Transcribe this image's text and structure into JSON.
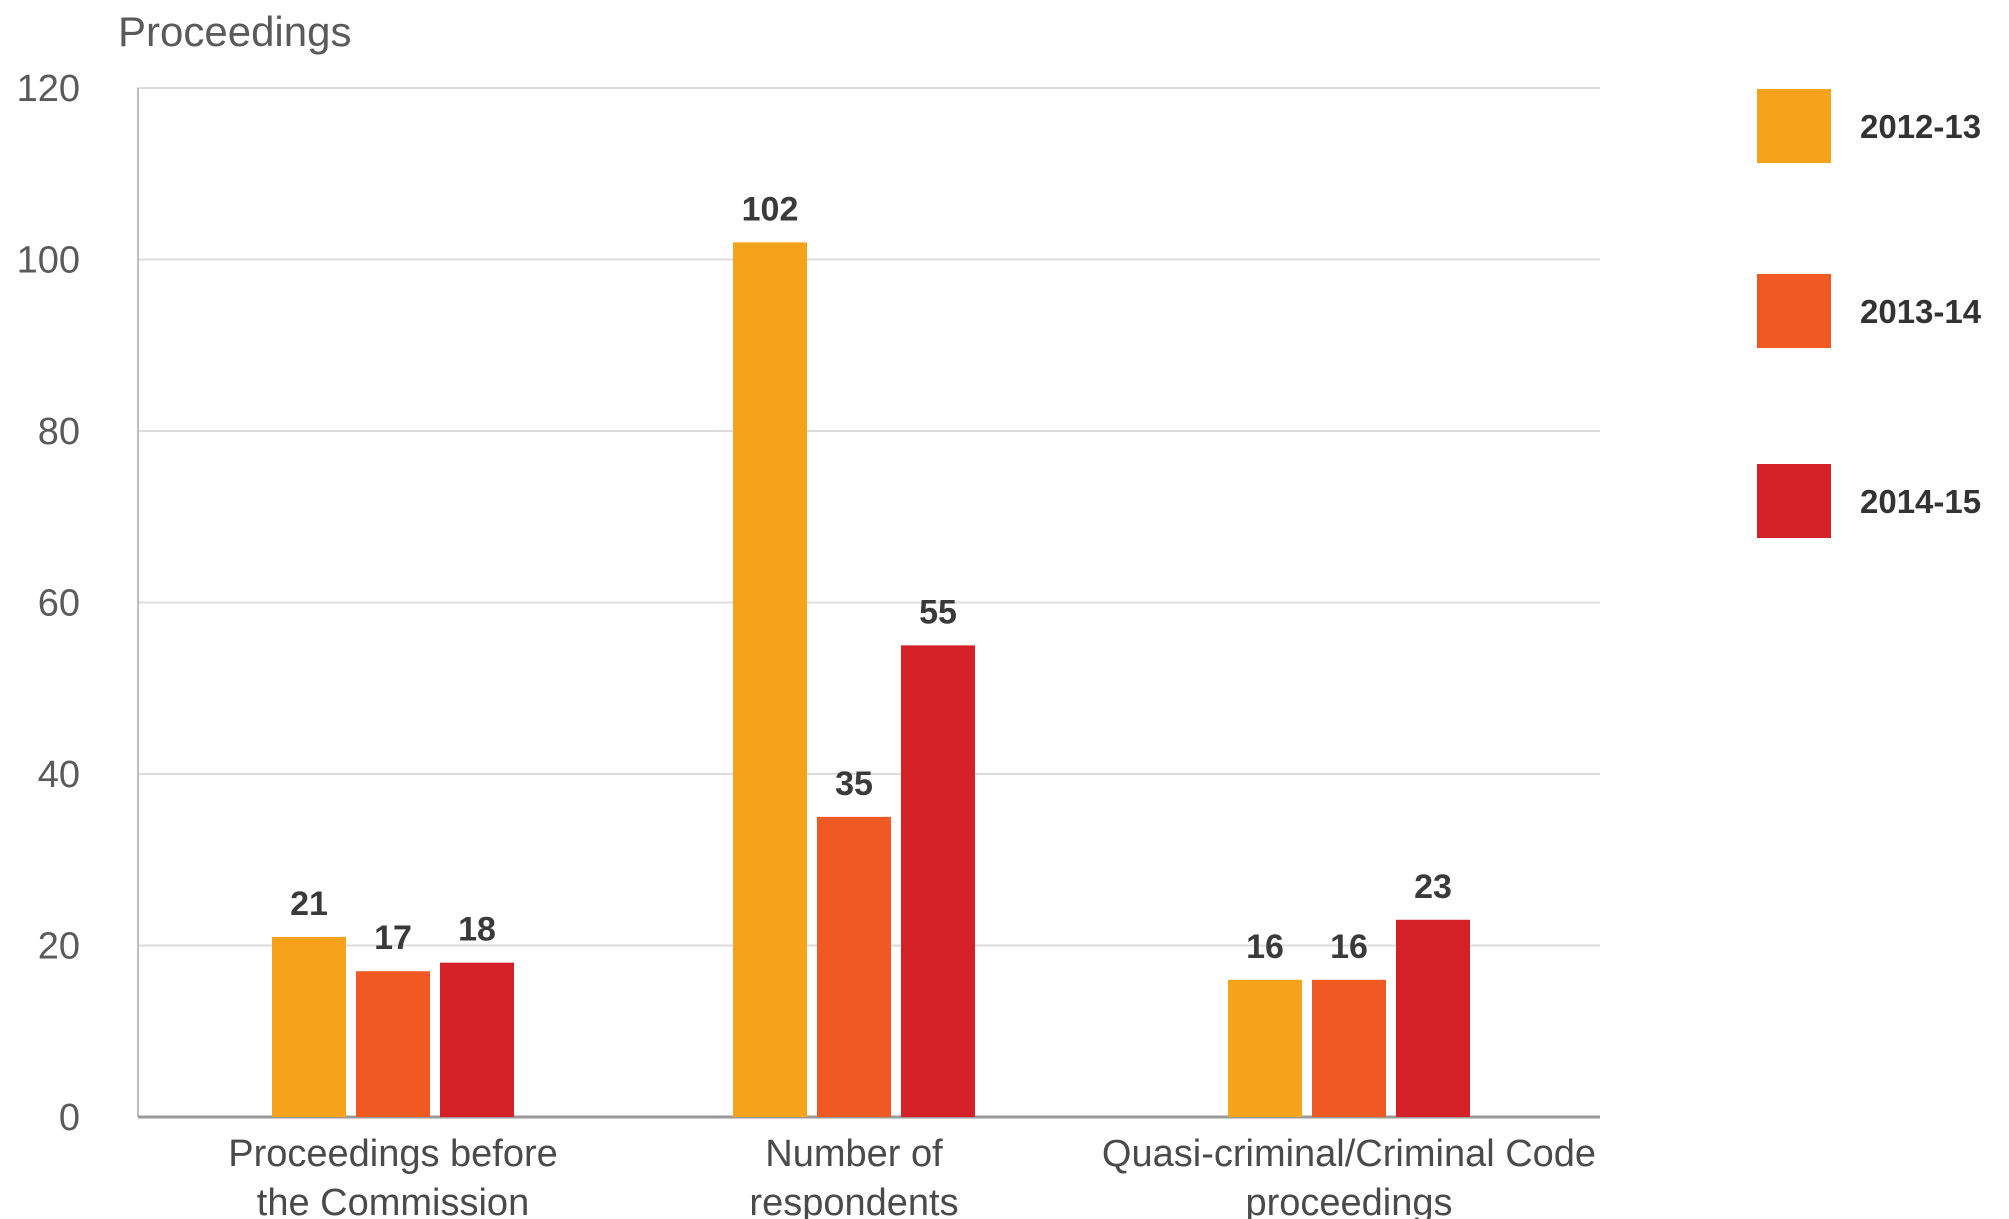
{
  "chart_data": {
    "type": "bar",
    "ylabel": "Proceedings",
    "ylim": [
      0,
      120
    ],
    "yticks": [
      0,
      20,
      40,
      60,
      80,
      100,
      120
    ],
    "grid": true,
    "legend_position": "right",
    "categories": [
      [
        "Proceedings before",
        "the Commission"
      ],
      [
        "Number of",
        "respondents"
      ],
      [
        "Quasi-criminal/Criminal Code",
        "proceedings"
      ]
    ],
    "series": [
      {
        "name": "2012-13",
        "color": "#F7A21B",
        "values": [
          21,
          102,
          16
        ]
      },
      {
        "name": "2013-14",
        "color": "#F05A22",
        "values": [
          17,
          35,
          16
        ]
      },
      {
        "name": "2014-15",
        "color": "#D42027",
        "values": [
          18,
          55,
          23
        ]
      }
    ]
  }
}
